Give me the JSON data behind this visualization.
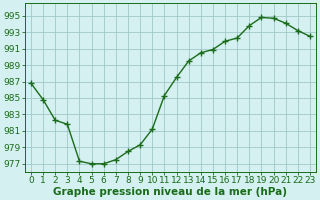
{
  "x": [
    0,
    1,
    2,
    3,
    4,
    5,
    6,
    7,
    8,
    9,
    10,
    11,
    12,
    13,
    14,
    15,
    16,
    17,
    18,
    19,
    20,
    21,
    22,
    23
  ],
  "y": [
    986.8,
    984.8,
    982.3,
    981.8,
    977.3,
    977.0,
    977.0,
    977.5,
    978.5,
    979.3,
    981.2,
    985.3,
    987.5,
    989.5,
    990.5,
    990.9,
    991.9,
    992.3,
    993.8,
    994.8,
    994.7,
    994.1,
    993.2,
    992.5
  ],
  "line_color": "#1a6b1a",
  "marker": "+",
  "background_color": "#d4f0f0",
  "grid_color": "#a0c8c8",
  "ylabel_ticks": [
    977,
    979,
    981,
    983,
    985,
    987,
    989,
    991,
    993,
    995
  ],
  "ylim": [
    976.0,
    996.5
  ],
  "xlim": [
    -0.5,
    23.5
  ],
  "xlabel": "Graphe pression niveau de la mer (hPa)",
  "xlabel_fontsize": 7.5,
  "tick_fontsize": 6.5,
  "line_width": 1.0,
  "marker_size": 4
}
